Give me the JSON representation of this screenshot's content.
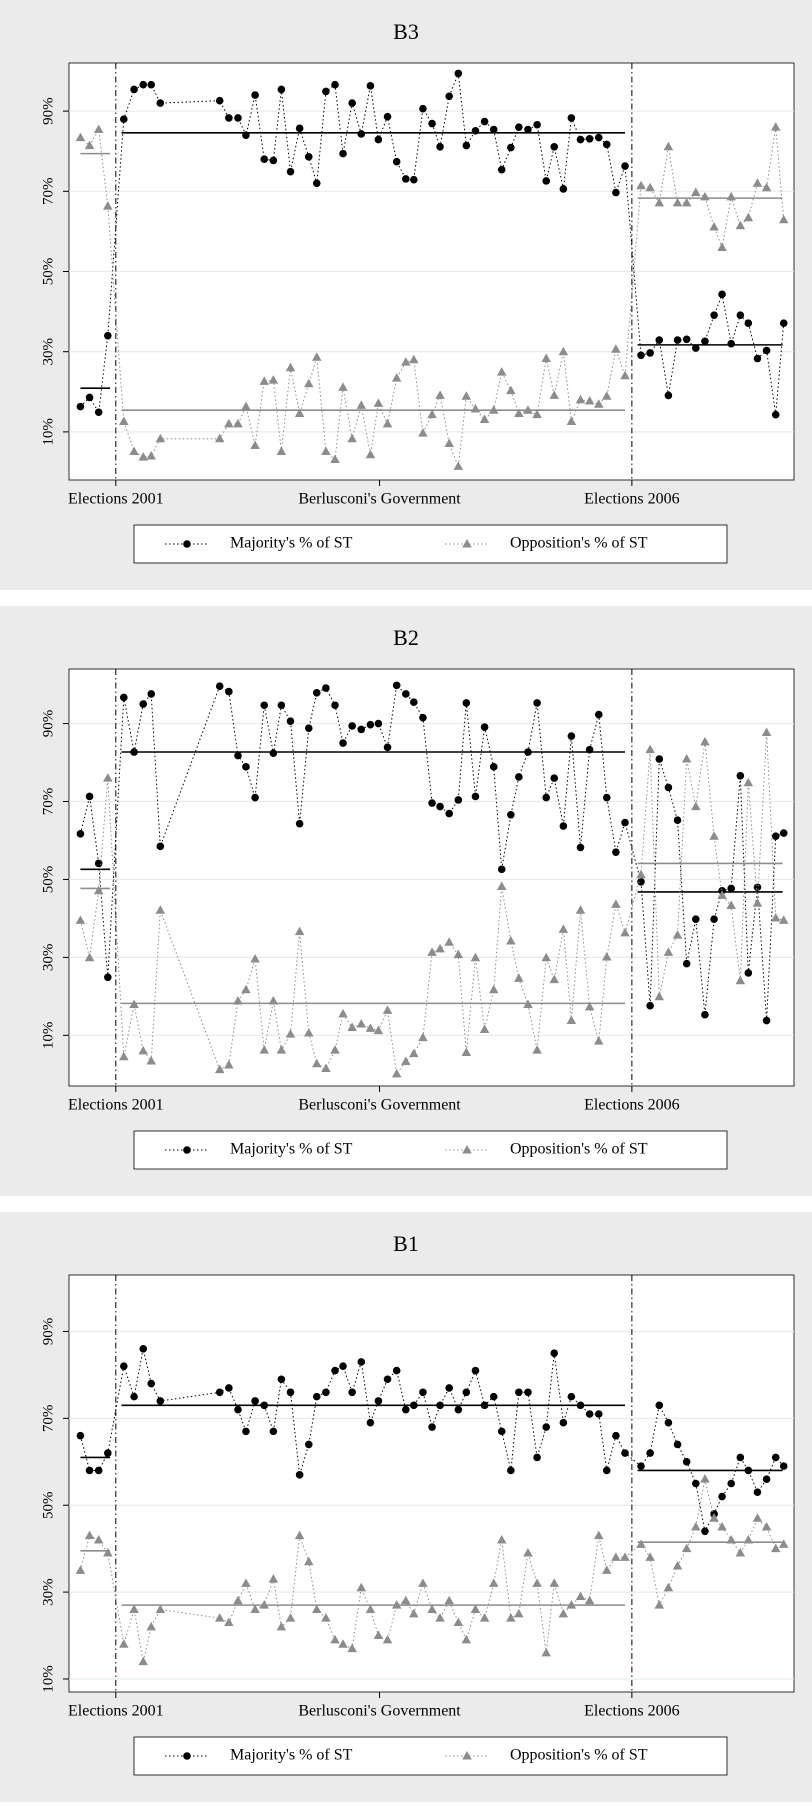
{
  "chart_data": [
    {
      "type": "line",
      "title": "B3",
      "x": [
        -31,
        -23,
        -15,
        -7,
        7,
        16,
        24,
        31,
        39,
        91,
        99,
        107,
        114,
        122,
        130,
        138,
        145,
        153,
        161,
        169,
        176,
        184,
        192,
        199,
        207,
        215,
        223,
        230,
        238,
        246,
        254,
        261,
        269,
        277,
        284,
        292,
        300,
        307,
        315,
        323,
        331,
        338,
        346,
        353,
        361,
        369,
        377,
        384,
        392,
        399,
        407,
        415,
        423,
        430,
        438,
        446,
        460,
        468,
        476,
        484,
        492,
        500,
        508,
        516,
        524,
        531,
        539,
        547,
        554,
        562,
        570,
        578,
        585
      ],
      "xlim": [
        -41,
        594
      ],
      "xticks": [
        {
          "value": 0,
          "label": "Elections 2001"
        },
        {
          "value": 231,
          "label": "Berlusconi's Government"
        },
        {
          "value": 452,
          "label": "Elections 2006"
        }
      ],
      "vlines": [
        0,
        452
      ],
      "ylim": [
        -2,
        102
      ],
      "yticks": [
        {
          "value": 10,
          "label": "10%"
        },
        {
          "value": 30,
          "label": "30%"
        },
        {
          "value": 50,
          "label": "50%"
        },
        {
          "value": 70,
          "label": "70%"
        },
        {
          "value": 90,
          "label": "90%"
        }
      ],
      "grid": true,
      "legend": "bottom",
      "periods": [
        [
          -31,
          -5
        ],
        [
          5,
          446
        ],
        [
          457,
          584
        ]
      ],
      "series": [
        {
          "name": "Majority's % of ST",
          "color": "#000000",
          "marker": "circle",
          "values": [
            16.3,
            18.6,
            14.9,
            34,
            88,
            95.4,
            96.6,
            96.6,
            92,
            92.6,
            88.3,
            88.3,
            84,
            94,
            78,
            77.7,
            95.4,
            74.9,
            85.7,
            78.6,
            72,
            94.9,
            96.6,
            79.4,
            92,
            84.3,
            96.3,
            82.9,
            88.6,
            77.4,
            73.1,
            72.9,
            90.6,
            86.9,
            81.1,
            93.7,
            99.4,
            81.4,
            85.1,
            87.4,
            85.4,
            75.4,
            80.9,
            86,
            85.4,
            86.6,
            72.6,
            81.1,
            70.6,
            88.3,
            82.9,
            83.1,
            83.4,
            81.7,
            69.7,
            76.3,
            29.1,
            29.7,
            32.9,
            19.1,
            32.9,
            33.1,
            30.9,
            32.6,
            39.1,
            44.3,
            32,
            39.1,
            37.1,
            28.3,
            30.3,
            14.3,
            37.1
          ],
          "period_means": [
            20.9,
            84.6,
            31.7
          ]
        },
        {
          "name": "Opposition's % of ST",
          "color": "#8c8c8c",
          "marker": "triangle",
          "values": [
            83.4,
            81.4,
            85.4,
            66.3,
            12.6,
            5.1,
            3.7,
            4,
            8.3,
            8.3,
            12,
            12,
            16.3,
            6.6,
            22.6,
            22.9,
            5.1,
            26,
            14.6,
            22,
            28.6,
            5.1,
            3.1,
            21.1,
            8.3,
            16.6,
            4.3,
            17.1,
            12,
            23.4,
            27.4,
            28,
            9.7,
            14.3,
            19.1,
            7.1,
            1.4,
            18.9,
            15.7,
            13.1,
            15.4,
            24.9,
            20.3,
            14.6,
            15.4,
            14.3,
            28.3,
            19.1,
            30,
            12.6,
            18,
            17.7,
            16.9,
            18.9,
            30.6,
            24,
            71.4,
            70.9,
            67.1,
            81.1,
            67.1,
            67.1,
            69.7,
            68.6,
            61.1,
            56,
            68.6,
            61.4,
            63.4,
            72,
            70.9,
            86,
            62.9
          ],
          "period_means": [
            79.4,
            15.4,
            68.3
          ]
        }
      ]
    },
    {
      "type": "line",
      "title": "B2",
      "x": [
        -31,
        -23,
        -15,
        -7,
        7,
        16,
        24,
        31,
        39,
        91,
        99,
        107,
        114,
        122,
        130,
        138,
        145,
        153,
        161,
        169,
        176,
        184,
        192,
        199,
        207,
        215,
        223,
        230,
        238,
        246,
        254,
        261,
        269,
        277,
        284,
        292,
        300,
        307,
        315,
        323,
        331,
        338,
        346,
        353,
        361,
        369,
        377,
        384,
        392,
        399,
        407,
        415,
        423,
        430,
        438,
        446,
        460,
        468,
        476,
        484,
        492,
        500,
        508,
        516,
        524,
        531,
        539,
        547,
        554,
        562,
        570,
        578,
        585
      ],
      "xlim": [
        -41,
        594
      ],
      "xticks": [
        {
          "value": 0,
          "label": "Elections 2001"
        },
        {
          "value": 231,
          "label": "Berlusconi's Government"
        },
        {
          "value": 452,
          "label": "Elections 2006"
        }
      ],
      "vlines": [
        0,
        452
      ],
      "ylim": [
        -3,
        104
      ],
      "yticks": [
        {
          "value": 10,
          "label": "10%"
        },
        {
          "value": 30,
          "label": "30%"
        },
        {
          "value": 50,
          "label": "50%"
        },
        {
          "value": 70,
          "label": "70%"
        },
        {
          "value": 90,
          "label": "90%"
        }
      ],
      "grid": true,
      "legend": "bottom",
      "periods": [
        [
          -31,
          -5
        ],
        [
          5,
          446
        ],
        [
          457,
          584
        ]
      ],
      "series": [
        {
          "name": "Majority's % of ST",
          "color": "#000000",
          "marker": "circle",
          "values": [
            61.7,
            71.3,
            54.1,
            24.9,
            96.7,
            82.7,
            95,
            97.6,
            58.5,
            99.6,
            98.2,
            81.8,
            78.9,
            71,
            94.7,
            82.4,
            94.7,
            90.6,
            64.3,
            88.8,
            97.9,
            99.1,
            94.7,
            85,
            89.4,
            88.5,
            89.7,
            90,
            83.9,
            99.8,
            97.6,
            95.5,
            91.5,
            69.6,
            68.7,
            66.9,
            70.4,
            95.3,
            71.3,
            89.1,
            78.9,
            52.6,
            66.6,
            76.3,
            82.7,
            95.3,
            71,
            76,
            63.7,
            86.8,
            58.2,
            83.3,
            92.3,
            71,
            57,
            64.6,
            49.4,
            17.6,
            80.9,
            73.6,
            65.2,
            28.4,
            39.8,
            15.3,
            39.8,
            47.1,
            47.7,
            76.6,
            26,
            48,
            13.8,
            61.1,
            61.9
          ],
          "period_means": [
            52.6,
            82.7,
            46.8
          ]
        },
        {
          "name": "Opposition's % of ST",
          "color": "#8c8c8c",
          "marker": "triangle",
          "values": [
            39.5,
            29.9,
            47.1,
            76,
            4.5,
            17.9,
            6,
            3.4,
            42.1,
            1.2,
            2.4,
            18.8,
            21.7,
            29.6,
            6.2,
            18.8,
            6.2,
            10.3,
            36.6,
            10.6,
            2.7,
            1.5,
            6.2,
            15.5,
            12,
            12.9,
            11.8,
            11.2,
            16.4,
            0.1,
            3.3,
            5.3,
            9.4,
            31.3,
            32.2,
            33.9,
            30.7,
            5.6,
            29.9,
            11.5,
            21.7,
            48.2,
            34.2,
            24.6,
            17.9,
            6.2,
            29.9,
            24.3,
            37.2,
            13.8,
            42.1,
            17.3,
            8.5,
            30.1,
            43.6,
            36.3,
            51.2,
            83.3,
            19.9,
            31.3,
            35.7,
            80.9,
            68.7,
            85.3,
            61.1,
            45.9,
            43.3,
            24,
            74.8,
            43.9,
            87.7,
            40.1,
            39.5
          ],
          "period_means": [
            47.7,
            18.2,
            54.1
          ]
        }
      ]
    },
    {
      "type": "line",
      "title": "B1",
      "x": [
        -31,
        -23,
        -15,
        -7,
        7,
        16,
        24,
        31,
        39,
        91,
        99,
        107,
        114,
        122,
        130,
        138,
        145,
        153,
        161,
        169,
        176,
        184,
        192,
        199,
        207,
        215,
        223,
        230,
        238,
        246,
        254,
        261,
        269,
        277,
        284,
        292,
        300,
        307,
        315,
        323,
        331,
        338,
        346,
        353,
        361,
        369,
        377,
        384,
        392,
        399,
        407,
        415,
        423,
        430,
        438,
        446,
        460,
        468,
        476,
        484,
        492,
        500,
        508,
        516,
        524,
        531,
        539,
        547,
        554,
        562,
        570,
        578,
        585
      ],
      "xlim": [
        -41,
        594
      ],
      "xticks": [
        {
          "value": 0,
          "label": "Elections 2001"
        },
        {
          "value": 231,
          "label": "Berlusconi's Government"
        },
        {
          "value": 452,
          "label": "Elections 2006"
        }
      ],
      "vlines": [
        0,
        452
      ],
      "ylim": [
        7,
        103
      ],
      "yticks": [
        {
          "value": 10,
          "label": "10%"
        },
        {
          "value": 30,
          "label": "30%"
        },
        {
          "value": 50,
          "label": "50%"
        },
        {
          "value": 70,
          "label": "70%"
        },
        {
          "value": 90,
          "label": "90%"
        }
      ],
      "grid": true,
      "legend": "bottom",
      "periods": [
        [
          -31,
          -5
        ],
        [
          5,
          446
        ],
        [
          457,
          584
        ]
      ],
      "series": [
        {
          "name": "Majority's % of ST",
          "color": "#000000",
          "marker": "circle",
          "values": [
            66,
            58,
            58,
            62,
            82,
            75,
            86,
            78,
            74,
            76,
            77,
            72,
            67,
            74,
            73,
            67,
            79,
            76,
            57,
            64,
            75,
            76,
            81,
            82,
            76,
            83,
            69,
            74,
            79,
            81,
            72,
            73,
            76,
            68,
            73,
            77,
            72,
            76,
            81,
            73,
            75,
            67,
            58,
            76,
            76,
            61,
            68,
            85,
            69,
            75,
            73,
            71,
            71,
            58,
            66,
            62,
            59,
            62,
            73,
            69,
            64,
            60,
            55,
            44,
            48,
            52,
            55,
            61,
            58,
            53,
            56,
            61,
            59
          ],
          "period_means": [
            61,
            73,
            58
          ]
        },
        {
          "name": "Opposition's % of ST",
          "color": "#8c8c8c",
          "marker": "triangle",
          "values": [
            35,
            43,
            42,
            39,
            18,
            26,
            14,
            22,
            26,
            24,
            23,
            28,
            32,
            26,
            27,
            33,
            22,
            24,
            43,
            37,
            26,
            24,
            19,
            18,
            17,
            31,
            26,
            20,
            19,
            27,
            28,
            25,
            32,
            26,
            24,
            28,
            23,
            19,
            26,
            24,
            32,
            42,
            24,
            25,
            39,
            32,
            16,
            32,
            25,
            27,
            29,
            28,
            43,
            35,
            38,
            38,
            41,
            38,
            27,
            31,
            36,
            40,
            45,
            56,
            47,
            45,
            42,
            39,
            42,
            47,
            45,
            40,
            41
          ],
          "period_means": [
            39.5,
            27,
            41.5
          ]
        }
      ]
    }
  ]
}
